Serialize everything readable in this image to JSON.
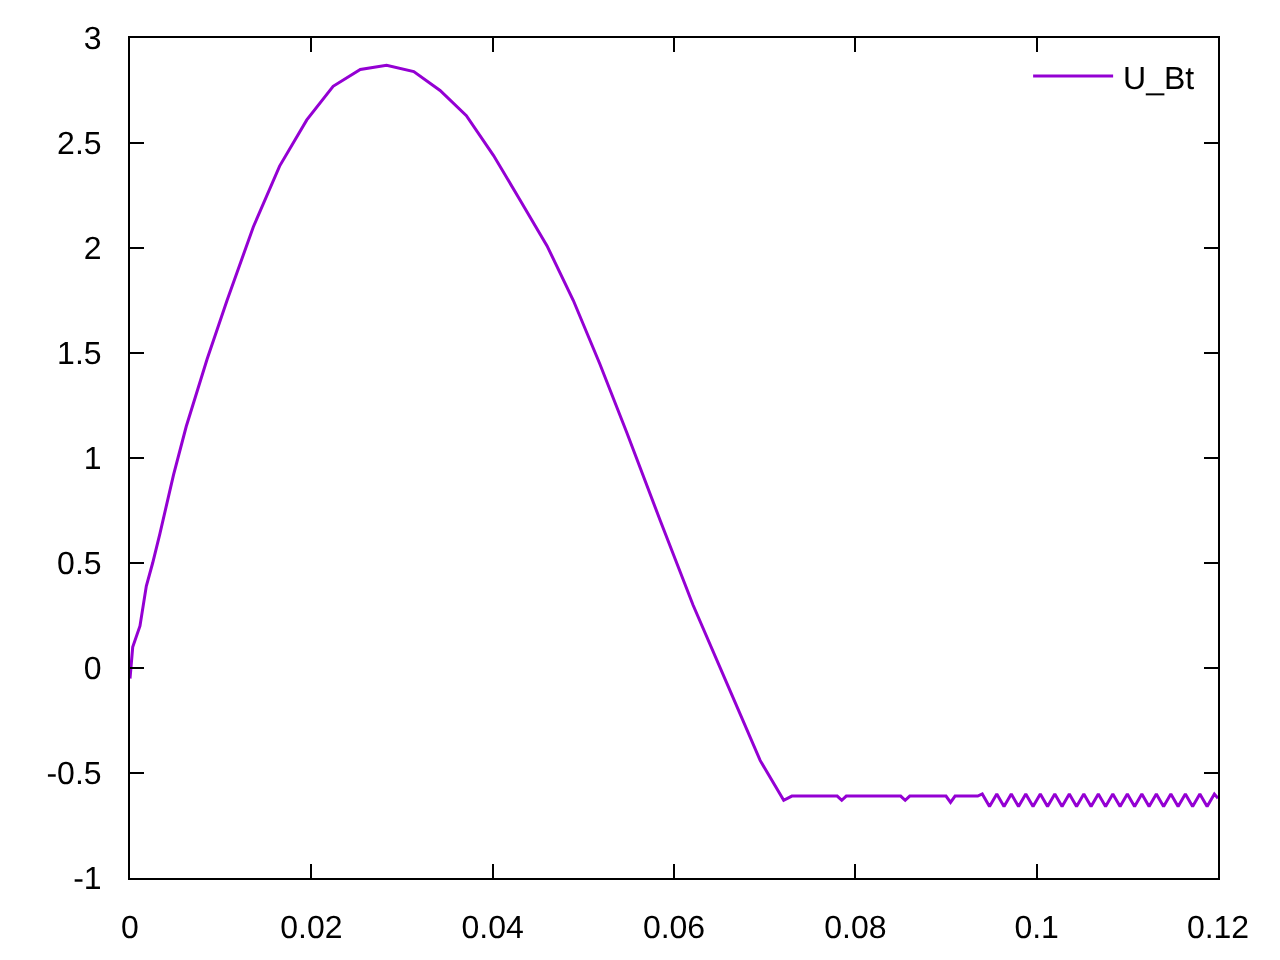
{
  "chart_data": {
    "type": "line",
    "series": [
      {
        "name": "U_Bt",
        "color": "#9400d3",
        "x": [
          0,
          0.0003,
          0.0011,
          0.0018,
          0.0025,
          0.0033,
          0.0048,
          0.0062,
          0.0085,
          0.0107,
          0.0136,
          0.0165,
          0.0195,
          0.0224,
          0.0254,
          0.0283,
          0.0313,
          0.0342,
          0.0371,
          0.0401,
          0.043,
          0.046,
          0.0489,
          0.0518,
          0.0548,
          0.0585,
          0.0621,
          0.0658,
          0.0695,
          0.0721,
          0.073,
          0.078,
          0.0785,
          0.079,
          0.085,
          0.0855,
          0.086,
          0.09,
          0.0905,
          0.091,
          0.0935,
          0.094,
          0.0948,
          0.0956,
          0.0964,
          0.0972,
          0.098,
          0.0988,
          0.0996,
          0.1004,
          0.1012,
          0.102,
          0.1028,
          0.1036,
          0.1044,
          0.1052,
          0.106,
          0.1068,
          0.1076,
          0.1084,
          0.1092,
          0.11,
          0.1108,
          0.1116,
          0.1124,
          0.1132,
          0.114,
          0.1148,
          0.1156,
          0.1164,
          0.1172,
          0.118,
          0.1188,
          0.1196,
          0.12
        ],
        "values": [
          -0.05,
          0.1,
          0.2,
          0.39,
          0.5,
          0.64,
          0.92,
          1.15,
          1.47,
          1.75,
          2.1,
          2.39,
          2.61,
          2.77,
          2.85,
          2.87,
          2.84,
          2.75,
          2.63,
          2.44,
          2.23,
          2.01,
          1.75,
          1.45,
          1.12,
          0.7,
          0.3,
          -0.07,
          -0.44,
          -0.63,
          -0.61,
          -0.61,
          -0.63,
          -0.61,
          -0.61,
          -0.63,
          -0.61,
          -0.61,
          -0.64,
          -0.61,
          -0.61,
          -0.6,
          -0.66,
          -0.6,
          -0.66,
          -0.6,
          -0.66,
          -0.6,
          -0.66,
          -0.6,
          -0.66,
          -0.6,
          -0.66,
          -0.6,
          -0.66,
          -0.6,
          -0.66,
          -0.6,
          -0.66,
          -0.6,
          -0.66,
          -0.6,
          -0.66,
          -0.6,
          -0.66,
          -0.6,
          -0.66,
          -0.6,
          -0.66,
          -0.6,
          -0.66,
          -0.6,
          -0.66,
          -0.6,
          -0.62
        ]
      }
    ],
    "xlim": [
      0,
      0.12
    ],
    "xticks": [
      0,
      0.02,
      0.04,
      0.06,
      0.08,
      0.1,
      0.12
    ],
    "ylim": [
      -1,
      3
    ],
    "yticks": [
      -1,
      -0.5,
      0,
      0.5,
      1,
      1.5,
      2,
      2.5,
      3
    ],
    "legend": "top right",
    "grid": false,
    "marker": "none",
    "line_style": "solid"
  }
}
